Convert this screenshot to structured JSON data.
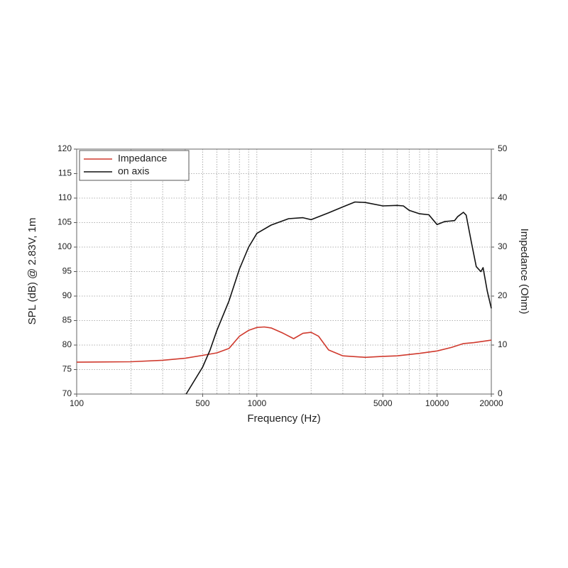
{
  "chart_data": {
    "type": "line",
    "xlabel": "Frequency (Hz)",
    "ylabel": "SPL (dB) @ 2.83V, 1m",
    "y2label": "Impedance (Ohm)",
    "xscale": "log",
    "xlim": [
      100,
      20000
    ],
    "xticks": [
      100,
      500,
      1000,
      5000,
      10000,
      20000
    ],
    "xgrid": [
      200,
      300,
      400,
      500,
      600,
      700,
      800,
      900,
      1000,
      2000,
      3000,
      4000,
      5000,
      6000,
      7000,
      8000,
      9000,
      10000
    ],
    "ylim": [
      70,
      120
    ],
    "yticks": [
      70,
      75,
      80,
      85,
      90,
      95,
      100,
      105,
      110,
      115,
      120
    ],
    "y2lim": [
      0,
      50
    ],
    "y2ticks": [
      0,
      10,
      20,
      30,
      40,
      50
    ],
    "grid": true,
    "legend": "upper-left",
    "series": [
      {
        "name": "Impedance",
        "color": "#d03a2e",
        "axis": "y2",
        "x": [
          100,
          200,
          300,
          400,
          500,
          600,
          700,
          800,
          900,
          1000,
          1100,
          1200,
          1400,
          1600,
          1800,
          2000,
          2200,
          2500,
          3000,
          4000,
          5000,
          6000,
          8000,
          10000,
          12000,
          14000,
          16000,
          20000
        ],
        "values": [
          6.5,
          6.6,
          6.9,
          7.3,
          7.9,
          8.4,
          9.3,
          11.8,
          13.0,
          13.6,
          13.7,
          13.5,
          12.4,
          11.3,
          12.4,
          12.6,
          11.8,
          9.0,
          7.8,
          7.5,
          7.7,
          7.8,
          8.3,
          8.8,
          9.5,
          10.3,
          10.5,
          11.0
        ]
      },
      {
        "name": "on axis",
        "color": "#111111",
        "x": [
          405,
          500,
          550,
          600,
          700,
          800,
          900,
          1000,
          1200,
          1500,
          1800,
          2000,
          2500,
          3000,
          3500,
          4000,
          5000,
          6000,
          6500,
          7000,
          8000,
          9000,
          10000,
          11000,
          12500,
          13000,
          14000,
          14500,
          15500,
          16500,
          17500,
          18000,
          19000,
          20000
        ],
        "values": [
          70,
          75.5,
          79,
          83,
          89,
          95.5,
          100,
          102.8,
          104.5,
          105.8,
          106.0,
          105.6,
          107,
          108.2,
          109.2,
          109.1,
          108.4,
          108.5,
          108.4,
          107.5,
          106.8,
          106.6,
          104.6,
          105.2,
          105.4,
          106.2,
          107.1,
          106.5,
          101,
          96,
          95,
          95.8,
          91,
          87.5
        ]
      }
    ]
  }
}
